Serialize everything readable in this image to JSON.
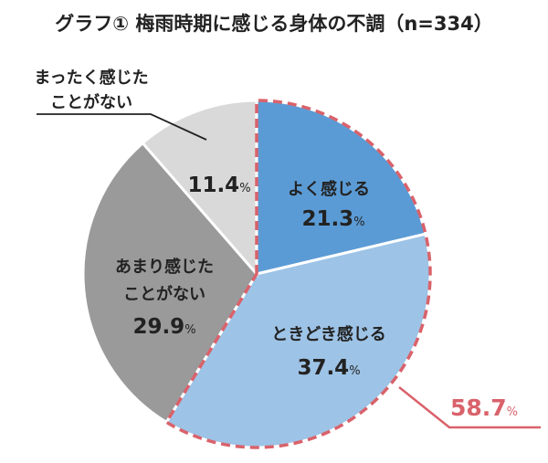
{
  "chart_data": {
    "type": "pie",
    "title": "グラフ① 梅雨時期に感じる身体の不調（n=334）",
    "start": "top",
    "direction": "clockwise",
    "slices": [
      {
        "label_lines": [
          "よく感じる"
        ],
        "value": 21.3,
        "value_text": "21.3",
        "color": "#5b9bd5"
      },
      {
        "label_lines": [
          "ときどき感じる"
        ],
        "value": 37.4,
        "value_text": "37.4",
        "color": "#9dc3e6"
      },
      {
        "label_lines": [
          "あまり感じた",
          "ことがない"
        ],
        "value": 29.9,
        "value_text": "29.9",
        "color": "#9a9a9a"
      },
      {
        "label_lines": [
          "まったく感じた",
          "ことがない"
        ],
        "value": 11.4,
        "value_text": "11.4",
        "color": "#d9d9d9"
      }
    ],
    "percent_sign": "%",
    "highlight": {
      "value_text": "58.7",
      "covers": [
        "よく感じる",
        "ときどき感じる"
      ],
      "color": "#d9626b"
    }
  }
}
